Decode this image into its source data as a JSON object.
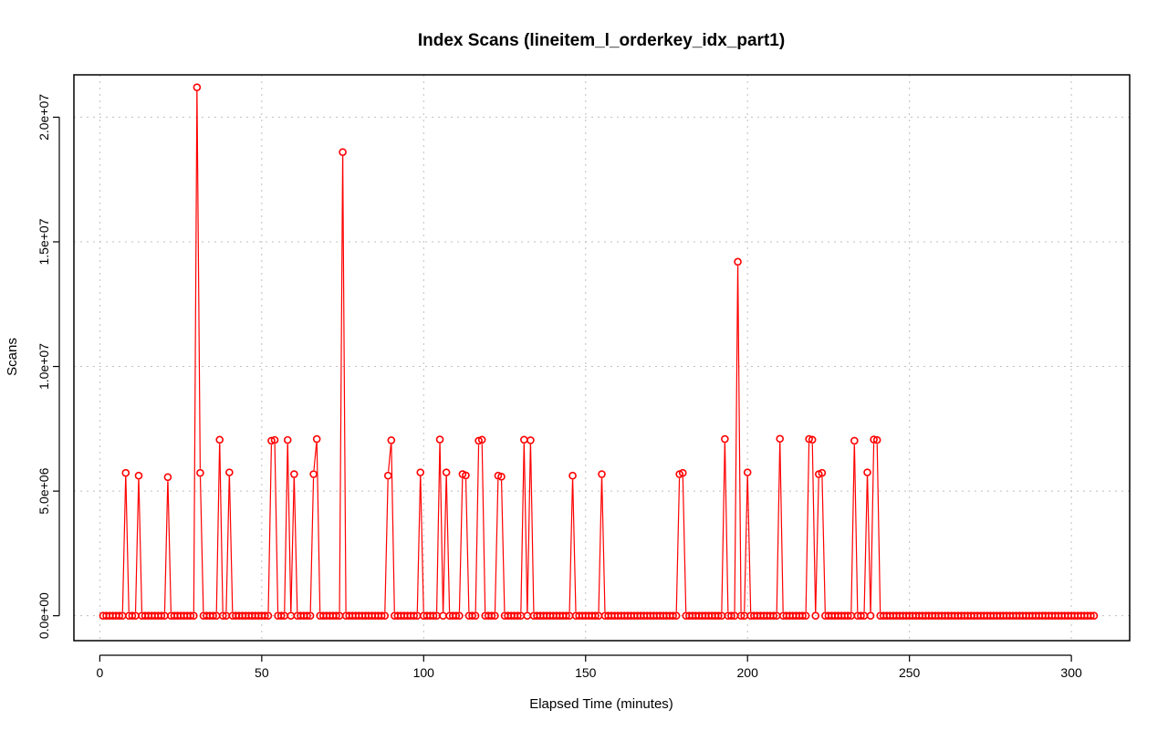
{
  "chart_data": {
    "type": "line",
    "title": "Index Scans (lineitem_l_orderkey_idx_part1)",
    "xlabel": "Elapsed Time (minutes)",
    "ylabel": "Scans",
    "xlim": [
      -8,
      318
    ],
    "ylim": [
      -1000000,
      21700000
    ],
    "xticks": [
      0,
      50,
      100,
      150,
      200,
      250,
      300
    ],
    "xtick_labels": [
      "0",
      "50",
      "100",
      "150",
      "200",
      "250",
      "300"
    ],
    "yticks": [
      0,
      5000000,
      10000000,
      15000000,
      20000000
    ],
    "ytick_labels": [
      "0.0e+00",
      "5.0e+06",
      "1.0e+07",
      "1.5e+07",
      "2.0e+07"
    ],
    "grid": true,
    "colors": {
      "series": "#ff0000",
      "grid": "#bfbfbf",
      "axis": "#000000"
    },
    "x_start": 1,
    "x_end": 307,
    "baseline": 0,
    "nonzero_points": [
      [
        8,
        5730000
      ],
      [
        12,
        5620000
      ],
      [
        21,
        5560000
      ],
      [
        30,
        21200000
      ],
      [
        31,
        5730000
      ],
      [
        37,
        7060000
      ],
      [
        40,
        5750000
      ],
      [
        53,
        7020000
      ],
      [
        54,
        7050000
      ],
      [
        58,
        7050000
      ],
      [
        60,
        5680000
      ],
      [
        66,
        5680000
      ],
      [
        67,
        7090000
      ],
      [
        75,
        18600000
      ],
      [
        89,
        5620000
      ],
      [
        90,
        7040000
      ],
      [
        99,
        5750000
      ],
      [
        105,
        7070000
      ],
      [
        107,
        5750000
      ],
      [
        112,
        5680000
      ],
      [
        113,
        5630000
      ],
      [
        117,
        7020000
      ],
      [
        118,
        7060000
      ],
      [
        123,
        5620000
      ],
      [
        124,
        5580000
      ],
      [
        131,
        7060000
      ],
      [
        133,
        7040000
      ],
      [
        146,
        5620000
      ],
      [
        155,
        5680000
      ],
      [
        179,
        5680000
      ],
      [
        180,
        5730000
      ],
      [
        193,
        7090000
      ],
      [
        197,
        14200000
      ],
      [
        200,
        5750000
      ],
      [
        210,
        7100000
      ],
      [
        219,
        7090000
      ],
      [
        220,
        7060000
      ],
      [
        222,
        5680000
      ],
      [
        223,
        5730000
      ],
      [
        233,
        7020000
      ],
      [
        237,
        5750000
      ],
      [
        239,
        7070000
      ],
      [
        240,
        7050000
      ]
    ]
  }
}
